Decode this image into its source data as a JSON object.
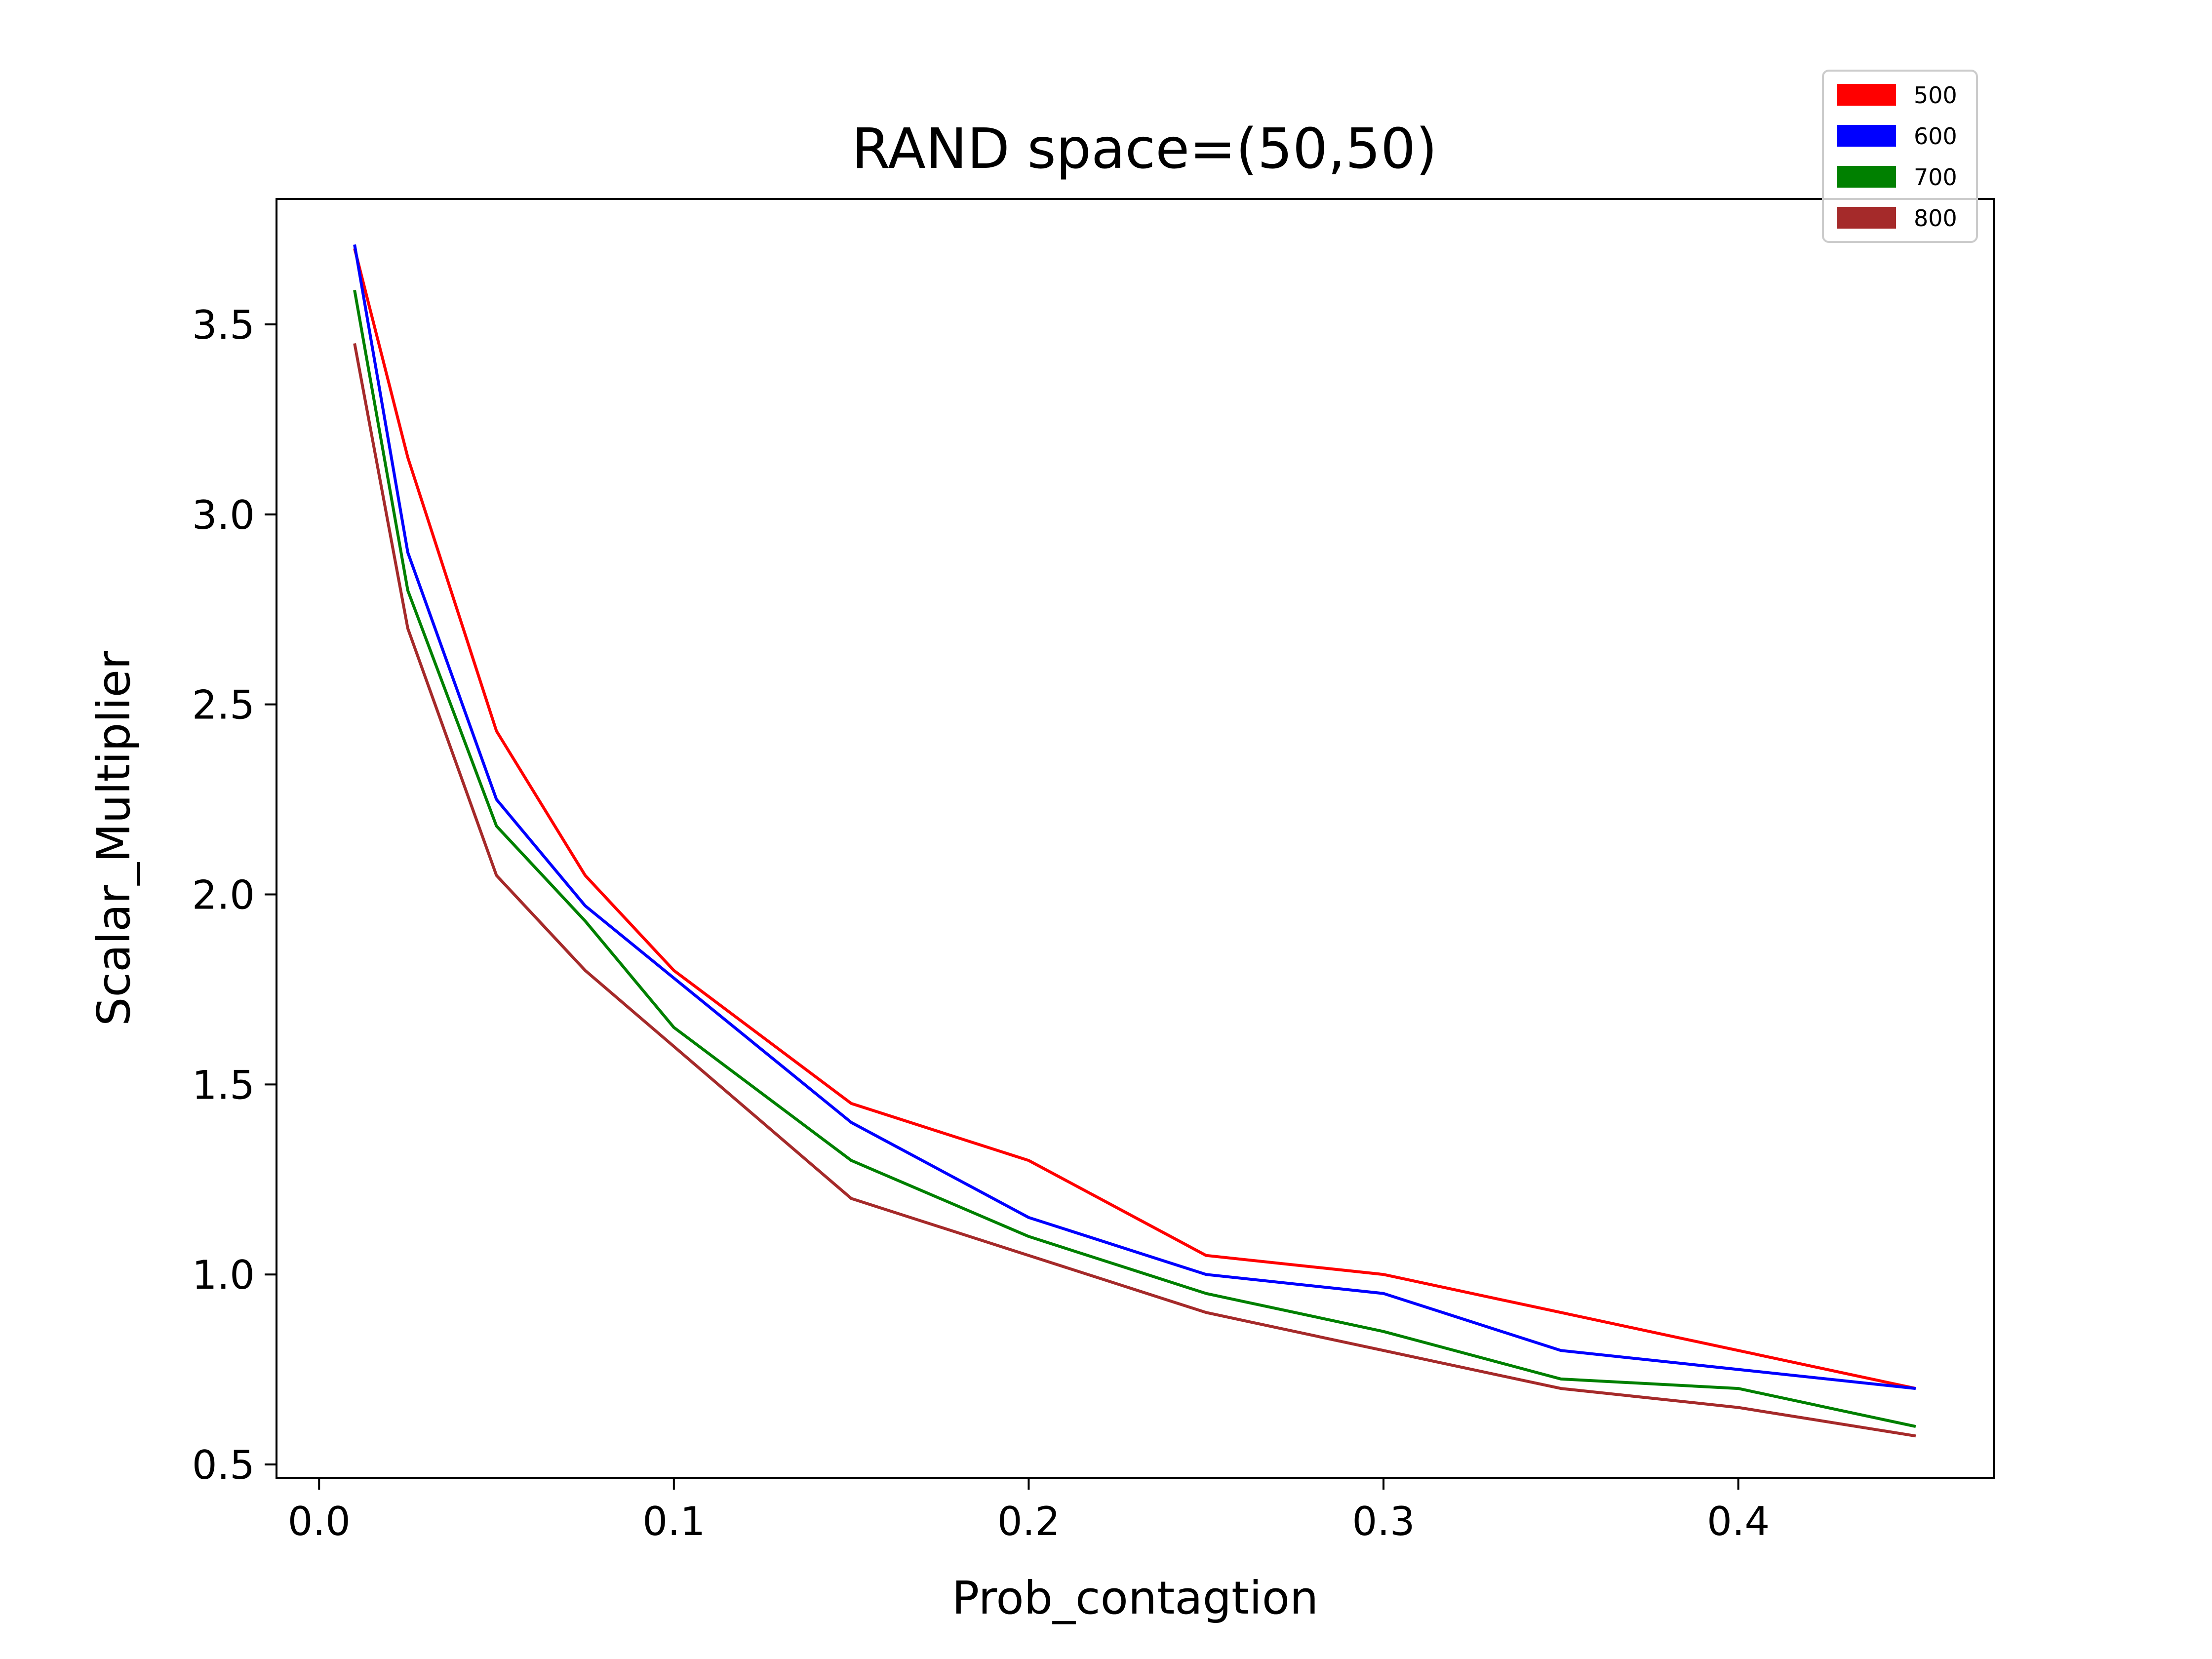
{
  "chart_data": {
    "type": "line",
    "title": "RAND space=(50,50)",
    "xlabel": "Prob_contagtion",
    "ylabel": "Scalar_Multiplier",
    "xlim": [
      -0.012,
      0.472
    ],
    "ylim": [
      0.465,
      3.83
    ],
    "xticks": [
      0.0,
      0.1,
      0.2,
      0.3,
      0.4
    ],
    "xtick_labels": [
      "0.0",
      "0.1",
      "0.2",
      "0.3",
      "0.4"
    ],
    "yticks": [
      0.5,
      1.0,
      1.5,
      2.0,
      2.5,
      3.0,
      3.5
    ],
    "ytick_labels": [
      "0.5",
      "1.0",
      "1.5",
      "2.0",
      "2.5",
      "3.0",
      "3.5"
    ],
    "grid": false,
    "legend_position": "top-right",
    "x": [
      0.01,
      0.025,
      0.05,
      0.075,
      0.1,
      0.15,
      0.2,
      0.25,
      0.3,
      0.35,
      0.4,
      0.45
    ],
    "series": [
      {
        "name": "500",
        "color": "#ff0000",
        "values": [
          3.7,
          3.15,
          2.43,
          2.05,
          1.8,
          1.45,
          1.3,
          1.05,
          1.0,
          0.9,
          0.8,
          0.7
        ]
      },
      {
        "name": "600",
        "color": "#0000ff",
        "values": [
          3.71,
          2.9,
          2.25,
          1.97,
          1.78,
          1.4,
          1.15,
          1.0,
          0.95,
          0.8,
          0.75,
          0.7
        ]
      },
      {
        "name": "700",
        "color": "#008000",
        "values": [
          3.59,
          2.8,
          2.18,
          1.93,
          1.65,
          1.3,
          1.1,
          0.95,
          0.85,
          0.725,
          0.7,
          0.6
        ]
      },
      {
        "name": "800",
        "color": "#a52a2a",
        "values": [
          3.45,
          2.7,
          2.05,
          1.8,
          1.6,
          1.2,
          1.05,
          0.9,
          0.8,
          0.7,
          0.65,
          0.575
        ]
      }
    ]
  }
}
